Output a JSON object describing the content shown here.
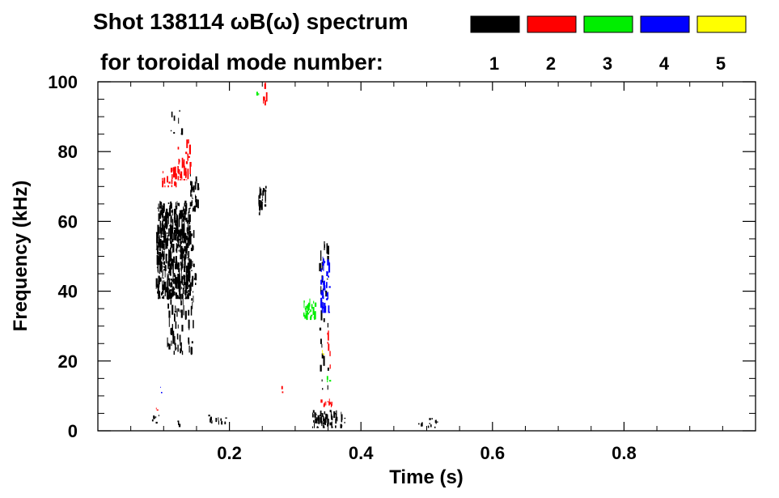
{
  "chart_data": {
    "type": "heatmap",
    "title_line1": "Shot 138114 ωB(ω) spectrum",
    "title_line2": "for toroidal mode number:",
    "xlabel": "Time (s)",
    "ylabel": "Frequency (kHz)",
    "xlim": [
      0.0,
      1.0
    ],
    "ylim": [
      0,
      100
    ],
    "x_ticks": [
      "0.2",
      "0.4",
      "0.6",
      "0.8"
    ],
    "x_tick_values": [
      0.2,
      0.4,
      0.6,
      0.8
    ],
    "y_ticks": [
      "0",
      "20",
      "40",
      "60",
      "80",
      "100"
    ],
    "y_tick_values": [
      0,
      20,
      40,
      60,
      80,
      100
    ],
    "legend": [
      {
        "n": "1",
        "color": "#000000"
      },
      {
        "n": "2",
        "color": "#ff0000"
      },
      {
        "n": "3",
        "color": "#00ee00"
      },
      {
        "n": "4",
        "color": "#0000ff"
      },
      {
        "n": "5",
        "color": "#ffff00"
      }
    ],
    "series": [
      {
        "mode": "1",
        "color": "#000000",
        "regions": [
          {
            "t": [
              0.088,
              0.14
            ],
            "f": [
              38,
              66
            ],
            "density": 1.0
          },
          {
            "t": [
              0.105,
              0.145
            ],
            "f": [
              22,
              60
            ],
            "density": 0.3
          },
          {
            "t": [
              0.14,
              0.152
            ],
            "f": [
              63,
              75
            ],
            "density": 0.6
          },
          {
            "t": [
              0.11,
              0.128
            ],
            "f": [
              85,
              92
            ],
            "density": 0.2
          },
          {
            "t": [
              0.138,
              0.148
            ],
            "f": [
              42,
              48
            ],
            "density": 0.5
          },
          {
            "t": [
              0.244,
              0.255
            ],
            "f": [
              62,
              70
            ],
            "density": 0.7
          },
          {
            "t": [
              0.25,
              0.256
            ],
            "f": [
              68,
              72
            ],
            "density": 0.4
          },
          {
            "t": [
              0.325,
              0.375
            ],
            "f": [
              1,
              6
            ],
            "density": 0.9
          },
          {
            "t": [
              0.335,
              0.35
            ],
            "f": [
              12,
              55
            ],
            "density": 0.15
          },
          {
            "t": [
              0.082,
              0.098
            ],
            "f": [
              2,
              5
            ],
            "density": 0.5
          },
          {
            "t": [
              0.165,
              0.2
            ],
            "f": [
              2,
              5
            ],
            "density": 0.4
          },
          {
            "t": [
              0.475,
              0.52
            ],
            "f": [
              1,
              4
            ],
            "density": 0.3
          },
          {
            "t": [
              0.12,
              0.128
            ],
            "f": [
              1,
              3
            ],
            "density": 0.5
          }
        ]
      },
      {
        "mode": "2",
        "color": "#ff0000",
        "regions": [
          {
            "t": [
              0.095,
              0.12
            ],
            "f": [
              70,
              76
            ],
            "density": 0.5
          },
          {
            "t": [
              0.12,
              0.14
            ],
            "f": [
              72,
              84
            ],
            "density": 0.4
          },
          {
            "t": [
              0.338,
              0.355
            ],
            "f": [
              7,
              10
            ],
            "density": 0.7
          },
          {
            "t": [
              0.25,
              0.256
            ],
            "f": [
              90,
              100
            ],
            "density": 0.3
          },
          {
            "t": [
              0.348,
              0.353
            ],
            "f": [
              18,
              32
            ],
            "density": 0.3
          },
          {
            "t": [
              0.275,
              0.28
            ],
            "f": [
              11,
              13
            ],
            "density": 0.3
          },
          {
            "t": [
              0.082,
              0.09
            ],
            "f": [
              6,
              7
            ],
            "density": 0.4
          }
        ]
      },
      {
        "mode": "3",
        "color": "#00ee00",
        "regions": [
          {
            "t": [
              0.312,
              0.33
            ],
            "f": [
              32,
              38
            ],
            "density": 0.9
          },
          {
            "t": [
              0.345,
              0.352
            ],
            "f": [
              14,
              17
            ],
            "density": 0.5
          },
          {
            "t": [
              0.24,
              0.245
            ],
            "f": [
              96,
              100
            ],
            "density": 0.4
          }
        ]
      },
      {
        "mode": "4",
        "color": "#0000ff",
        "regions": [
          {
            "t": [
              0.338,
              0.352
            ],
            "f": [
              34,
              50
            ],
            "density": 0.6
          },
          {
            "t": [
              0.094,
              0.096
            ],
            "f": [
              11,
              13
            ],
            "density": 0.6
          }
        ]
      },
      {
        "mode": "5",
        "color": "#ffff00",
        "regions": [
          {
            "t": [
              0.34,
              0.343
            ],
            "f": [
              22,
              24
            ],
            "density": 0.7
          }
        ]
      }
    ]
  }
}
